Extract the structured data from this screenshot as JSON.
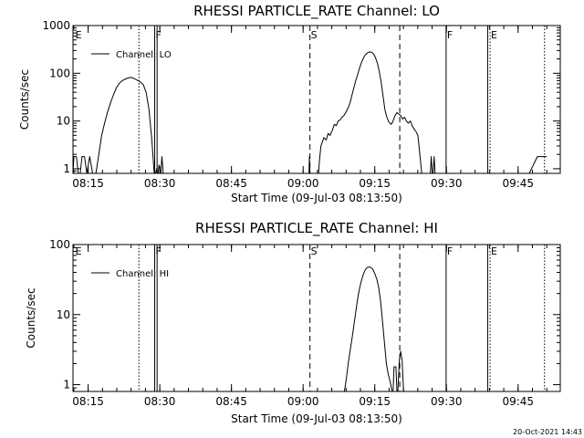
{
  "footer": {
    "timestamp": "20-Oct-2021 14:43"
  },
  "chart_data": [
    {
      "type": "line",
      "title": "RHESSI PARTICLE_RATE Channel: LO",
      "xlabel": "Start Time (09-Jul-03 08:13:50)",
      "ylabel": "Counts/sec",
      "yscale": "log",
      "xlim": [
        -2,
        100
      ],
      "ylim": [
        0.8,
        1000
      ],
      "x_ticks": [
        1.17,
        16.17,
        31.17,
        46.17,
        61.17,
        76.17,
        91.17
      ],
      "x_tick_labels": [
        "08:15",
        "08:30",
        "08:45",
        "09:00",
        "09:15",
        "09:30",
        "09:45"
      ],
      "y_ticks": [
        1,
        10,
        100,
        1000
      ],
      "y_tick_labels": [
        "1",
        "10",
        "100",
        "1000"
      ],
      "legend": {
        "position": "top-left",
        "label": "Channel: LO"
      },
      "markers": [
        {
          "x": -1.7,
          "label": "E",
          "style": "none"
        },
        {
          "x": 11.8,
          "label": "",
          "style": "dotted"
        },
        {
          "x": 15.1,
          "label": "F",
          "style": "solid"
        },
        {
          "x": 15.6,
          "label": "",
          "style": "solid"
        },
        {
          "x": 47.6,
          "label": "S",
          "style": "dashed"
        },
        {
          "x": 66.4,
          "label": "",
          "style": "dashed"
        },
        {
          "x": 76.1,
          "label": "F",
          "style": "solid"
        },
        {
          "x": 84.8,
          "label": "",
          "style": "solid"
        },
        {
          "x": 85.3,
          "label": "E",
          "style": "dotted"
        },
        {
          "x": 96.7,
          "label": "",
          "style": "dotted"
        }
      ],
      "series": [
        {
          "name": "Channel: LO",
          "points": [
            [
              -2.0,
              0.8
            ],
            [
              -1.8,
              1.8
            ],
            [
              -1.3,
              1.8
            ],
            [
              -0.9,
              0.8
            ],
            [
              -0.5,
              0.8
            ],
            [
              -0.1,
              1.8
            ],
            [
              0.4,
              1.8
            ],
            [
              0.9,
              0.8
            ],
            [
              1.5,
              1.8
            ],
            [
              2.1,
              0.8
            ],
            [
              2.8,
              0.8
            ],
            [
              3.4,
              2
            ],
            [
              4.0,
              5
            ],
            [
              4.6,
              9
            ],
            [
              5.2,
              15
            ],
            [
              5.9,
              25
            ],
            [
              6.5,
              36
            ],
            [
              7.1,
              50
            ],
            [
              7.7,
              62
            ],
            [
              8.3,
              70
            ],
            [
              9.0,
              76
            ],
            [
              9.6,
              80
            ],
            [
              10.2,
              82
            ],
            [
              10.8,
              78
            ],
            [
              11.4,
              72
            ],
            [
              12.1,
              66
            ],
            [
              12.7,
              58
            ],
            [
              13.3,
              40
            ],
            [
              13.9,
              18
            ],
            [
              14.5,
              4
            ],
            [
              15.0,
              0.8
            ],
            [
              15.3,
              0.8
            ],
            [
              15.5,
              1
            ],
            [
              15.7,
              0.8
            ],
            [
              15.8,
              0.8
            ],
            [
              16.0,
              1.2
            ],
            [
              16.3,
              0.8
            ],
            [
              16.4,
              0.8
            ],
            [
              16.6,
              1.8
            ],
            [
              16.9,
              0.8
            ],
            [
              47.4,
              0.8
            ],
            [
              47.5,
              1.8
            ],
            [
              47.6,
              0.8
            ],
            [
              49.4,
              0.8
            ],
            [
              49.6,
              1.5
            ],
            [
              49.9,
              3
            ],
            [
              50.5,
              4.5
            ],
            [
              51.0,
              4
            ],
            [
              51.4,
              5.5
            ],
            [
              51.8,
              5
            ],
            [
              52.3,
              6.5
            ],
            [
              52.7,
              8.5
            ],
            [
              53.1,
              8
            ],
            [
              53.5,
              10
            ],
            [
              53.9,
              10.5
            ],
            [
              54.3,
              12
            ],
            [
              54.7,
              13
            ],
            [
              55.1,
              15
            ],
            [
              55.6,
              19
            ],
            [
              56.0,
              24
            ],
            [
              56.4,
              35
            ],
            [
              56.8,
              50
            ],
            [
              57.2,
              70
            ],
            [
              57.6,
              95
            ],
            [
              58.0,
              130
            ],
            [
              58.4,
              170
            ],
            [
              58.8,
              210
            ],
            [
              59.2,
              245
            ],
            [
              59.7,
              270
            ],
            [
              60.1,
              280
            ],
            [
              60.5,
              275
            ],
            [
              60.9,
              255
            ],
            [
              61.3,
              215
            ],
            [
              61.7,
              165
            ],
            [
              62.1,
              110
            ],
            [
              62.5,
              65
            ],
            [
              62.9,
              33
            ],
            [
              63.3,
              17
            ],
            [
              63.7,
              12
            ],
            [
              64.1,
              9.5
            ],
            [
              64.6,
              8.5
            ],
            [
              65.0,
              10
            ],
            [
              65.4,
              13
            ],
            [
              65.8,
              15
            ],
            [
              66.2,
              14
            ],
            [
              66.6,
              13
            ],
            [
              67.0,
              11
            ],
            [
              67.4,
              12
            ],
            [
              67.8,
              10
            ],
            [
              68.2,
              9
            ],
            [
              68.6,
              10
            ],
            [
              69.0,
              8
            ],
            [
              69.5,
              6.5
            ],
            [
              69.8,
              6
            ],
            [
              70.2,
              5
            ],
            [
              70.6,
              2
            ],
            [
              71.0,
              0.8
            ],
            [
              72.8,
              0.8
            ],
            [
              73.0,
              1.8
            ],
            [
              73.2,
              0.8
            ],
            [
              73.4,
              0.8
            ],
            [
              73.6,
              1.8
            ],
            [
              73.8,
              0.8
            ],
            [
              93.5,
              0.8
            ],
            [
              95.2,
              1.8
            ],
            [
              97.2,
              1.8
            ]
          ]
        }
      ]
    },
    {
      "type": "line",
      "title": "RHESSI PARTICLE_RATE Channel: HI",
      "xlabel": "Start Time (09-Jul-03 08:13:50)",
      "ylabel": "Counts/sec",
      "yscale": "log",
      "xlim": [
        -2,
        100
      ],
      "ylim": [
        0.8,
        100
      ],
      "x_ticks": [
        1.17,
        16.17,
        31.17,
        46.17,
        61.17,
        76.17,
        91.17
      ],
      "x_tick_labels": [
        "08:15",
        "08:30",
        "08:45",
        "09:00",
        "09:15",
        "09:30",
        "09:45"
      ],
      "y_ticks": [
        1,
        10,
        100
      ],
      "y_tick_labels": [
        "1",
        "10",
        "100"
      ],
      "legend": {
        "position": "top-left",
        "label": "Channel: HI"
      },
      "markers": [
        {
          "x": -1.7,
          "label": "E",
          "style": "none"
        },
        {
          "x": 11.8,
          "label": "",
          "style": "dotted"
        },
        {
          "x": 15.1,
          "label": "F",
          "style": "solid"
        },
        {
          "x": 15.6,
          "label": "",
          "style": "solid"
        },
        {
          "x": 47.6,
          "label": "S",
          "style": "dashed"
        },
        {
          "x": 66.4,
          "label": "",
          "style": "dashed"
        },
        {
          "x": 76.1,
          "label": "F",
          "style": "solid"
        },
        {
          "x": 84.8,
          "label": "",
          "style": "solid"
        },
        {
          "x": 85.3,
          "label": "E",
          "style": "dotted"
        },
        {
          "x": 96.7,
          "label": "",
          "style": "dotted"
        }
      ],
      "series": [
        {
          "name": "Channel: HI",
          "points": [
            [
              54.8,
              0.8
            ],
            [
              55.2,
              1.2
            ],
            [
              55.6,
              2
            ],
            [
              56.0,
              3
            ],
            [
              56.4,
              4.5
            ],
            [
              56.8,
              7
            ],
            [
              57.2,
              11
            ],
            [
              57.6,
              17
            ],
            [
              58.0,
              24
            ],
            [
              58.4,
              31
            ],
            [
              58.8,
              38
            ],
            [
              59.2,
              44
            ],
            [
              59.6,
              47
            ],
            [
              60.0,
              48
            ],
            [
              60.4,
              47
            ],
            [
              60.8,
              44
            ],
            [
              61.2,
              38
            ],
            [
              61.6,
              32
            ],
            [
              62.0,
              24
            ],
            [
              62.4,
              15
            ],
            [
              62.8,
              8
            ],
            [
              63.2,
              4
            ],
            [
              63.6,
              2
            ],
            [
              64.0,
              1.4
            ],
            [
              64.4,
              1.1
            ],
            [
              64.8,
              0.8
            ],
            [
              65.0,
              0.8
            ],
            [
              65.2,
              1.8
            ],
            [
              65.6,
              1.8
            ],
            [
              65.8,
              0.8
            ],
            [
              66.0,
              0.8
            ],
            [
              66.3,
              2.2
            ],
            [
              66.6,
              3
            ],
            [
              66.9,
              2.2
            ],
            [
              67.2,
              0.8
            ]
          ]
        }
      ]
    }
  ]
}
